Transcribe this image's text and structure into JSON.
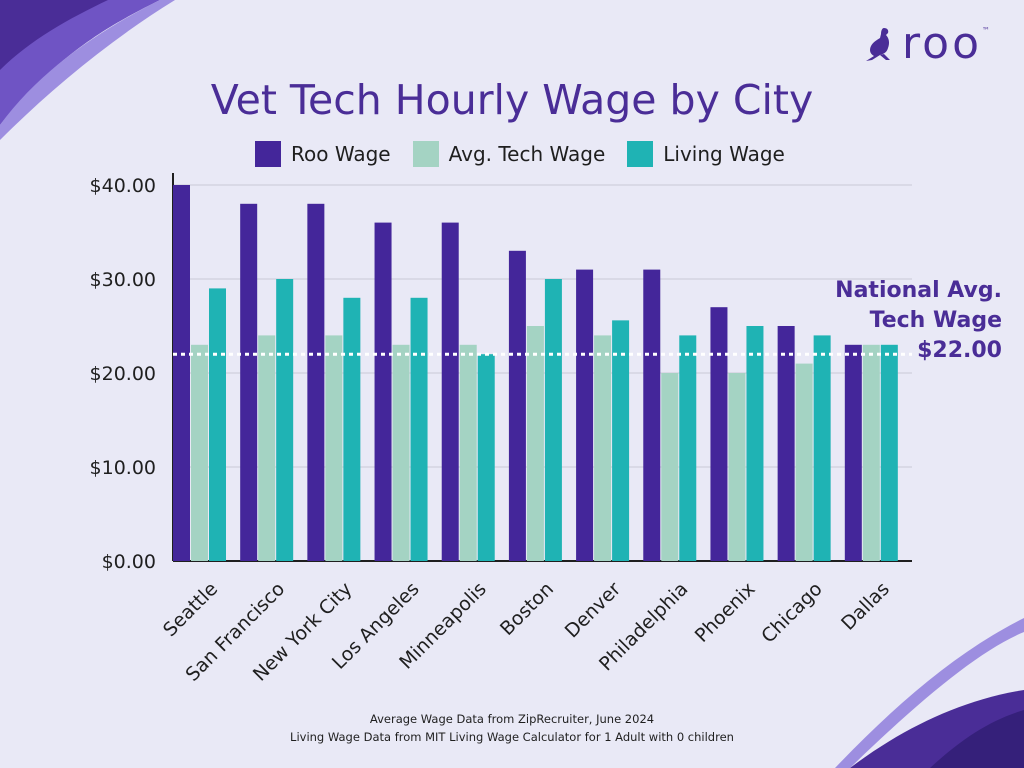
{
  "brand": {
    "logo_text": "roo",
    "trademark": "™",
    "logo_icon": "kangaroo-icon",
    "color": "#4a2d97"
  },
  "chart_data": {
    "type": "bar",
    "title": "Vet Tech Hourly Wage by City",
    "categories": [
      "Seattle",
      "San Francisco",
      "New York City",
      "Los Angeles",
      "Minneapolis",
      "Boston",
      "Denver",
      "Philadelphia",
      "Phoenix",
      "Chicago",
      "Dallas"
    ],
    "series": [
      {
        "name": "Roo Wage",
        "color": "#44269a",
        "values": [
          40,
          38,
          38,
          36,
          36,
          33,
          31,
          31,
          27,
          25,
          23
        ]
      },
      {
        "name": "Avg. Tech Wage",
        "color": "#a4d3c3",
        "values": [
          23,
          24,
          24,
          23,
          23,
          25,
          24,
          20,
          20,
          21,
          23
        ]
      },
      {
        "name": "Living Wage",
        "color": "#1fb3b4",
        "values": [
          29,
          30,
          28,
          28,
          22,
          30,
          25.6,
          24,
          25,
          24,
          23
        ]
      }
    ],
    "yticks": [
      "$0.00",
      "$10.00",
      "$20.00",
      "$30.00",
      "$40.00"
    ],
    "ylim": [
      0,
      40
    ],
    "legend_position": "top",
    "grid": true,
    "reference_line": {
      "value": 22,
      "label_lines": [
        "National Avg.",
        "Tech Wage",
        "$22.00"
      ]
    }
  },
  "source_notes": [
    "Average Wage Data from ZipRecruiter, June 2024",
    "Living Wage Data from MIT Living Wage Calculator for 1 Adult with 0 children"
  ]
}
